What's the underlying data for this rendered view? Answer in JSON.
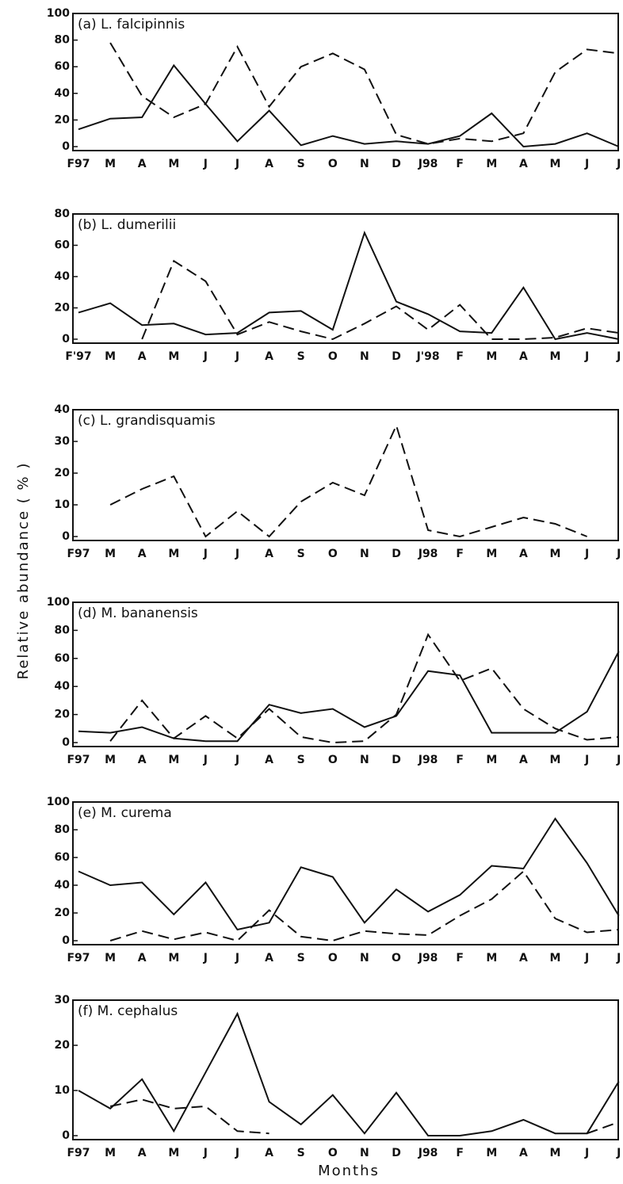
{
  "y_label": "Relative abundance ( % )",
  "x_label": "Months",
  "chart_data": [
    {
      "type": "line",
      "title": "(a) L. falcipinnis",
      "categories": [
        "F97",
        "M",
        "A",
        "M",
        "J",
        "J",
        "A",
        "S",
        "O",
        "N",
        "D",
        "J98",
        "F",
        "M",
        "A",
        "M",
        "J",
        "J"
      ],
      "ylim": [
        0,
        100
      ],
      "yticks": [
        0,
        20,
        40,
        60,
        80,
        100
      ],
      "series": [
        {
          "color": "#111111",
          "line_style": "solid",
          "values": [
            13,
            21,
            22,
            61,
            32,
            4,
            27,
            1,
            8,
            2,
            4,
            2,
            8,
            25,
            0,
            2,
            10,
            0
          ]
        },
        {
          "color": "#111111",
          "line_style": "dashed",
          "values": [
            null,
            78,
            38,
            22,
            32,
            75,
            30,
            60,
            70,
            58,
            9,
            2,
            6,
            4,
            10,
            56,
            73,
            70
          ]
        }
      ]
    },
    {
      "type": "line",
      "title": "(b) L. dumerilii",
      "categories": [
        "F'97",
        "M",
        "A",
        "M",
        "J",
        "J",
        "A",
        "S",
        "O",
        "N",
        "D",
        "J'98",
        "F",
        "M",
        "A",
        "M",
        "J",
        "J"
      ],
      "ylim": [
        0,
        80
      ],
      "yticks": [
        0,
        20,
        40,
        60,
        80
      ],
      "series": [
        {
          "color": "#111111",
          "line_style": "solid",
          "values": [
            17,
            23,
            9,
            10,
            3,
            4,
            17,
            18,
            6,
            68,
            24,
            16,
            5,
            4,
            33,
            0,
            4,
            0
          ]
        },
        {
          "color": "#111111",
          "line_style": "dashed",
          "values": [
            null,
            null,
            0,
            50,
            37,
            3,
            11,
            5,
            0,
            10,
            21,
            6,
            22,
            0,
            0,
            1,
            7,
            4
          ]
        }
      ]
    },
    {
      "type": "line",
      "title": "(c) L. grandisquamis",
      "categories": [
        "F97",
        "M",
        "A",
        "M",
        "J",
        "J",
        "A",
        "S",
        "O",
        "N",
        "D",
        "J98",
        "F",
        "M",
        "A",
        "M",
        "J",
        "J"
      ],
      "ylim": [
        0,
        40
      ],
      "yticks": [
        0,
        10,
        20,
        30,
        40
      ],
      "series": [
        {
          "color": "#111111",
          "line_style": "dashed",
          "values": [
            null,
            10,
            15,
            19,
            0,
            8,
            0,
            11,
            17,
            13,
            35,
            2,
            0,
            3,
            6,
            4,
            0,
            null
          ]
        }
      ]
    },
    {
      "type": "line",
      "title": "(d) M. bananensis",
      "categories": [
        "F97",
        "M",
        "A",
        "M",
        "J",
        "J",
        "A",
        "S",
        "O",
        "N",
        "D",
        "J98",
        "F",
        "M",
        "A",
        "M",
        "J",
        "J"
      ],
      "ylim": [
        0,
        100
      ],
      "yticks": [
        0,
        20,
        40,
        60,
        80,
        100
      ],
      "series": [
        {
          "color": "#111111",
          "line_style": "solid",
          "values": [
            8,
            7,
            11,
            3,
            1,
            1,
            27,
            21,
            24,
            11,
            19,
            51,
            48,
            7,
            7,
            7,
            22,
            65
          ]
        },
        {
          "color": "#111111",
          "line_style": "dashed",
          "values": [
            null,
            1,
            30,
            3,
            19,
            3,
            24,
            4,
            0,
            1,
            20,
            77,
            44,
            53,
            24,
            10,
            2,
            4
          ]
        }
      ]
    },
    {
      "type": "line",
      "title": "(e) M. curema",
      "categories": [
        "F97",
        "M",
        "A",
        "M",
        "J",
        "J",
        "A",
        "S",
        "O",
        "N",
        "O",
        "J98",
        "F",
        "M",
        "A",
        "M",
        "J",
        "J"
      ],
      "ylim": [
        0,
        100
      ],
      "yticks": [
        0,
        20,
        40,
        60,
        80,
        100
      ],
      "series": [
        {
          "color": "#111111",
          "line_style": "solid",
          "values": [
            50,
            40,
            42,
            19,
            42,
            8,
            13,
            53,
            46,
            13,
            37,
            21,
            33,
            54,
            52,
            88,
            56,
            18
          ]
        },
        {
          "color": "#111111",
          "line_style": "dashed",
          "values": [
            null,
            0,
            7,
            1,
            6,
            0,
            22,
            3,
            0,
            7,
            5,
            4,
            18,
            30,
            50,
            16,
            6,
            8
          ]
        }
      ]
    },
    {
      "type": "line",
      "title": "(f) M. cephalus",
      "categories": [
        "F97",
        "M",
        "A",
        "M",
        "J",
        "J",
        "A",
        "S",
        "O",
        "N",
        "D",
        "J98",
        "F",
        "M",
        "A",
        "M",
        "J",
        "J"
      ],
      "ylim": [
        0,
        30
      ],
      "yticks": [
        0,
        10,
        20,
        30
      ],
      "series": [
        {
          "color": "#111111",
          "line_style": "solid",
          "values": [
            10,
            6,
            12.5,
            1,
            14,
            27,
            7.5,
            2.5,
            9,
            0.5,
            9.5,
            0,
            0,
            1,
            3.5,
            0.5,
            0.5,
            12
          ]
        },
        {
          "color": "#111111",
          "line_style": "dashed",
          "values": [
            null,
            6.5,
            8,
            6,
            6.5,
            1,
            0.5,
            null,
            null,
            null,
            null,
            null,
            null,
            null,
            null,
            null,
            0.5,
            3
          ]
        }
      ]
    }
  ]
}
